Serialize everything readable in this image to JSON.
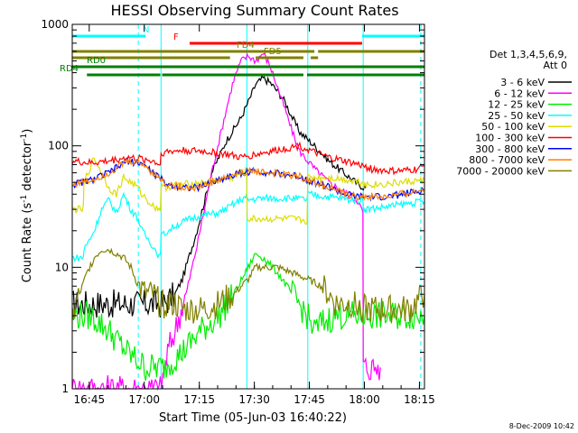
{
  "chart_data": {
    "type": "line",
    "title": "HESSI Observing Summary Count Rates",
    "xlabel": "Start Time (05-Jun-03 16:40:22)",
    "ylabel_main": "Count Rate (s",
    "ylabel_sup1": "-1",
    "ylabel_mid": " detector",
    "ylabel_sup2": "-1",
    "ylabel_end": ")",
    "footer": "8-Dec-2009 10:42",
    "y_scale": "log",
    "ylim": [
      1,
      1000
    ],
    "xlim_minutes": [
      0,
      96
    ],
    "x_ticks": [
      {
        "label": "16:45",
        "min": 4.63
      },
      {
        "label": "17:00",
        "min": 19.63
      },
      {
        "label": "17:15",
        "min": 34.63
      },
      {
        "label": "17:30",
        "min": 49.63
      },
      {
        "label": "17:45",
        "min": 64.63
      },
      {
        "label": "18:00",
        "min": 79.63
      },
      {
        "label": "18:15",
        "min": 94.63
      }
    ],
    "y_ticks": [
      {
        "label": "1",
        "value": 1
      },
      {
        "label": "10",
        "value": 10
      },
      {
        "label": "100",
        "value": 100
      },
      {
        "label": "1000",
        "value": 1000
      }
    ],
    "legend_header": [
      "Det 1,3,4,5,6,9,",
      "Att 0"
    ],
    "legend_placement": "right",
    "series": [
      {
        "name": "3 - 6 keV",
        "color": "#000000",
        "x": [
          0,
          20,
          22,
          25,
          28,
          30,
          34,
          38,
          42,
          46,
          48,
          50,
          52,
          54,
          56,
          58,
          60,
          62,
          66,
          70,
          74,
          78,
          80
        ],
        "y": [
          5,
          5,
          5,
          5,
          6,
          8,
          20,
          60,
          110,
          170,
          230,
          320,
          360,
          330,
          280,
          230,
          170,
          130,
          100,
          75,
          60,
          48,
          45
        ]
      },
      {
        "name": "6 - 12 keV",
        "color": "#ff00ff",
        "x": [
          0,
          24,
          26,
          28,
          31,
          34,
          38,
          42,
          44,
          46,
          48,
          50,
          52,
          54,
          56,
          58,
          60,
          62,
          66,
          70,
          74,
          78,
          79.2,
          79.3,
          82,
          84
        ],
        "y": [
          1,
          1,
          2,
          3,
          6,
          15,
          60,
          200,
          350,
          500,
          550,
          500,
          580,
          450,
          300,
          200,
          130,
          90,
          65,
          50,
          42,
          35,
          28,
          1.5,
          1.5,
          1.5
        ]
      },
      {
        "name": "12 - 25 keV",
        "color": "#00ee00",
        "x": [
          0,
          5,
          10,
          15,
          20,
          25,
          30,
          35,
          40,
          44,
          48,
          50,
          52,
          56,
          60,
          64,
          66,
          68,
          72,
          76,
          80,
          84,
          88,
          92,
          96
        ],
        "y": [
          4,
          4,
          3,
          2,
          1.5,
          1.5,
          2,
          3,
          4,
          6,
          10,
          13,
          12,
          9,
          6,
          4,
          3,
          3.5,
          4,
          4,
          4,
          4,
          4,
          4,
          4
        ]
      },
      {
        "name": "25 - 50 keV",
        "color": "#00ffff",
        "x": [
          0,
          3,
          3.2,
          6,
          8,
          10,
          12,
          14,
          16,
          18,
          19,
          22,
          24,
          24.2,
          28,
          32,
          36,
          40,
          44,
          46,
          47.5,
          47.7,
          52,
          56,
          60,
          64,
          64.2,
          70,
          76,
          79.2,
          79.4,
          84,
          90,
          96
        ],
        "y": [
          12,
          12,
          14,
          20,
          30,
          36,
          28,
          40,
          30,
          25,
          20,
          15,
          12,
          18,
          22,
          25,
          27,
          28,
          33,
          36,
          38,
          36,
          37,
          37,
          37,
          36,
          40,
          38,
          36,
          36,
          30,
          31,
          33,
          35
        ]
      },
      {
        "name": "50 - 100 keV",
        "color": "#dddd00",
        "x": [
          0,
          3,
          3.2,
          6,
          8,
          10,
          12,
          14,
          16,
          18,
          19,
          22,
          24,
          24.2,
          30,
          36,
          40,
          44,
          46,
          47.5,
          47.7,
          52,
          56,
          60,
          64,
          64.2,
          70,
          76,
          79.2,
          79.4,
          84,
          90,
          96
        ],
        "y": [
          30,
          30,
          50,
          80,
          60,
          45,
          40,
          55,
          50,
          45,
          40,
          32,
          30,
          45,
          48,
          50,
          52,
          55,
          60,
          62,
          25,
          25,
          25,
          25,
          24,
          55,
          55,
          52,
          50,
          48,
          48,
          50,
          52
        ]
      },
      {
        "name": "100 - 300 keV",
        "color": "#ff0000",
        "x": [
          0,
          5,
          10,
          15,
          19,
          22,
          24,
          24.2,
          30,
          36,
          42,
          46,
          50,
          54,
          58,
          62,
          66,
          70,
          74,
          78,
          82,
          86,
          90,
          94,
          96
        ],
        "y": [
          75,
          72,
          75,
          80,
          78,
          75,
          70,
          88,
          92,
          90,
          85,
          80,
          85,
          90,
          95,
          100,
          88,
          80,
          75,
          70,
          64,
          62,
          62,
          64,
          68
        ]
      },
      {
        "name": "300 - 800 keV",
        "color": "#0000ff",
        "x": [
          0,
          5,
          10,
          15,
          19,
          22,
          26,
          30,
          34,
          38,
          42,
          46,
          50,
          54,
          58,
          62,
          66,
          70,
          74,
          78,
          82,
          86,
          90,
          94,
          96
        ],
        "y": [
          48,
          52,
          60,
          75,
          72,
          60,
          48,
          46,
          45,
          50,
          55,
          60,
          62,
          60,
          58,
          56,
          50,
          46,
          40,
          38,
          38,
          38,
          40,
          42,
          44
        ]
      },
      {
        "name": "800 - 7000 keV",
        "color": "#ff8000",
        "x": [
          0,
          5,
          10,
          15,
          19,
          22,
          26,
          30,
          34,
          38,
          42,
          46,
          50,
          54,
          58,
          62,
          66,
          70,
          74,
          78,
          82,
          86,
          90,
          94,
          96
        ],
        "y": [
          48,
          52,
          60,
          75,
          72,
          60,
          48,
          46,
          45,
          50,
          55,
          60,
          62,
          60,
          58,
          56,
          50,
          46,
          40,
          38,
          38,
          38,
          40,
          42,
          44
        ]
      },
      {
        "name": "7000 - 20000 keV",
        "color": "#808000",
        "x": [
          0,
          2,
          4,
          6,
          8,
          10,
          12,
          14,
          16,
          18,
          20,
          22,
          24,
          26,
          28,
          30,
          32,
          34,
          36,
          40,
          44,
          48,
          50,
          52,
          56,
          60,
          64,
          68,
          72,
          76,
          80,
          84,
          88,
          92,
          96
        ],
        "y": [
          4,
          6,
          9,
          12,
          14,
          14,
          13,
          12,
          10,
          7,
          6,
          6,
          5,
          5,
          5,
          4.5,
          4.5,
          4.5,
          4.5,
          5,
          6,
          8,
          10,
          10,
          10,
          9,
          8,
          7,
          5,
          5,
          4.5,
          4.5,
          4.5,
          4.5,
          6
        ]
      }
    ],
    "flags": [
      {
        "label": "N",
        "color": "#00ffff",
        "segments": [
          [
            0,
            20
          ],
          [
            79,
            96
          ]
        ]
      },
      {
        "label": "F",
        "color": "#ff0000",
        "segments": [
          [
            32,
            79
          ]
        ]
      },
      {
        "label": "FD4",
        "color": "#808000",
        "segments": [
          [
            0,
            66
          ],
          [
            67,
            96
          ]
        ]
      },
      {
        "label": "FD5",
        "color": "#808000",
        "segments": [
          [
            0,
            43
          ],
          [
            50,
            63
          ],
          [
            65,
            67
          ]
        ]
      },
      {
        "label": "RD0",
        "color": "#008000",
        "segments": [
          [
            0,
            96
          ]
        ]
      },
      {
        "label": "RD4",
        "color": "#008000",
        "segments": [
          [
            4,
            24
          ],
          [
            24.5,
            63
          ],
          [
            64,
            96
          ]
        ]
      }
    ],
    "vlines": [
      {
        "min": 0,
        "color": "#00ffff",
        "style": "solid"
      },
      {
        "min": 18,
        "color": "#00ffff",
        "style": "dashed"
      },
      {
        "min": 24.2,
        "color": "#00ffff",
        "style": "solid"
      },
      {
        "min": 47.6,
        "color": "#00ffff",
        "style": "solid"
      },
      {
        "min": 64.2,
        "color": "#00ffff",
        "style": "solid"
      },
      {
        "min": 79.3,
        "color": "#00ffff",
        "style": "solid"
      },
      {
        "min": 95,
        "color": "#00ffff",
        "style": "dashed"
      }
    ]
  }
}
